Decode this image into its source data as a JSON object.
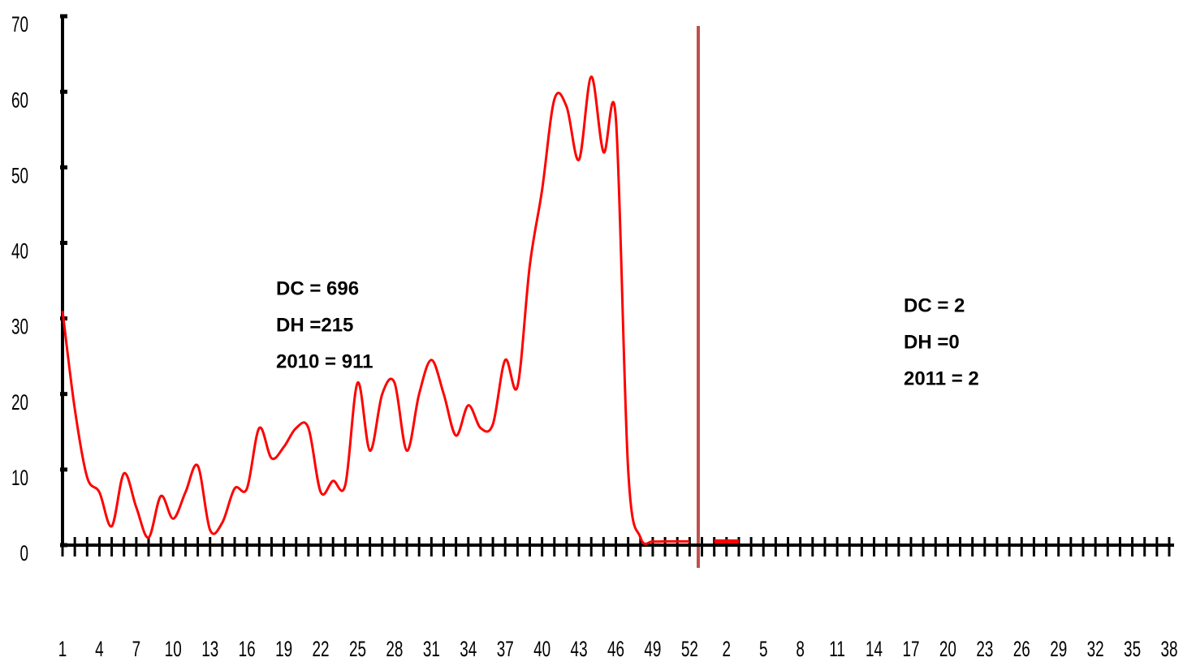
{
  "chart_data": {
    "type": "line",
    "categories": [
      "1",
      null,
      null,
      "4",
      null,
      null,
      "7",
      null,
      null,
      "10",
      null,
      null,
      "13",
      null,
      null,
      "16",
      null,
      null,
      "19",
      null,
      null,
      "22",
      null,
      null,
      "25",
      null,
      null,
      "28",
      null,
      null,
      "31",
      null,
      null,
      "34",
      null,
      null,
      "37",
      null,
      null,
      "40",
      null,
      null,
      "43",
      null,
      null,
      "46",
      null,
      null,
      "49",
      null,
      null,
      "52",
      null,
      null,
      "2",
      null,
      null,
      "5",
      null,
      null,
      "8",
      null,
      null,
      "11",
      null,
      null,
      "14",
      null,
      null,
      "17",
      null,
      null,
      "20",
      null,
      null,
      "23",
      null,
      null,
      "26",
      null,
      null,
      "29",
      null,
      null,
      "32",
      null,
      null,
      "35",
      null,
      null,
      "38"
    ],
    "series": [
      {
        "color": "#ff0000",
        "values": [
          31,
          18,
          9,
          7,
          2.5,
          9.5,
          5,
          1,
          6.5,
          3.5,
          7,
          10.5,
          2,
          3,
          7.5,
          7.5,
          15.5,
          11.5,
          13,
          15.5,
          15.5,
          7,
          8.5,
          8,
          21.5,
          12.5,
          20,
          21.5,
          12.5,
          20,
          24.5,
          20,
          14.5,
          18.5,
          15.5,
          16,
          24.5,
          21,
          37,
          47,
          59,
          58,
          51,
          62,
          52,
          56.5,
          10,
          1,
          0.5,
          0.5,
          0.5,
          0.5,
          null,
          0.5,
          0.5,
          0.5,
          null,
          null,
          null,
          null,
          null,
          null,
          null,
          null,
          null,
          null,
          null,
          null,
          null,
          null,
          null,
          null,
          null,
          null,
          null,
          null,
          null,
          null,
          null,
          null,
          null,
          null,
          null,
          null,
          null,
          null,
          null,
          null,
          null,
          null,
          null
        ]
      }
    ],
    "ylim": [
      0,
      70
    ],
    "yticks": [
      0,
      10,
      20,
      30,
      40,
      50,
      60,
      70
    ],
    "annotations": [
      [
        "DC = 696",
        "DH =215",
        "2010 = 911"
      ],
      [
        "DC = 2",
        "DH =0",
        "2011 = 2"
      ]
    ]
  }
}
